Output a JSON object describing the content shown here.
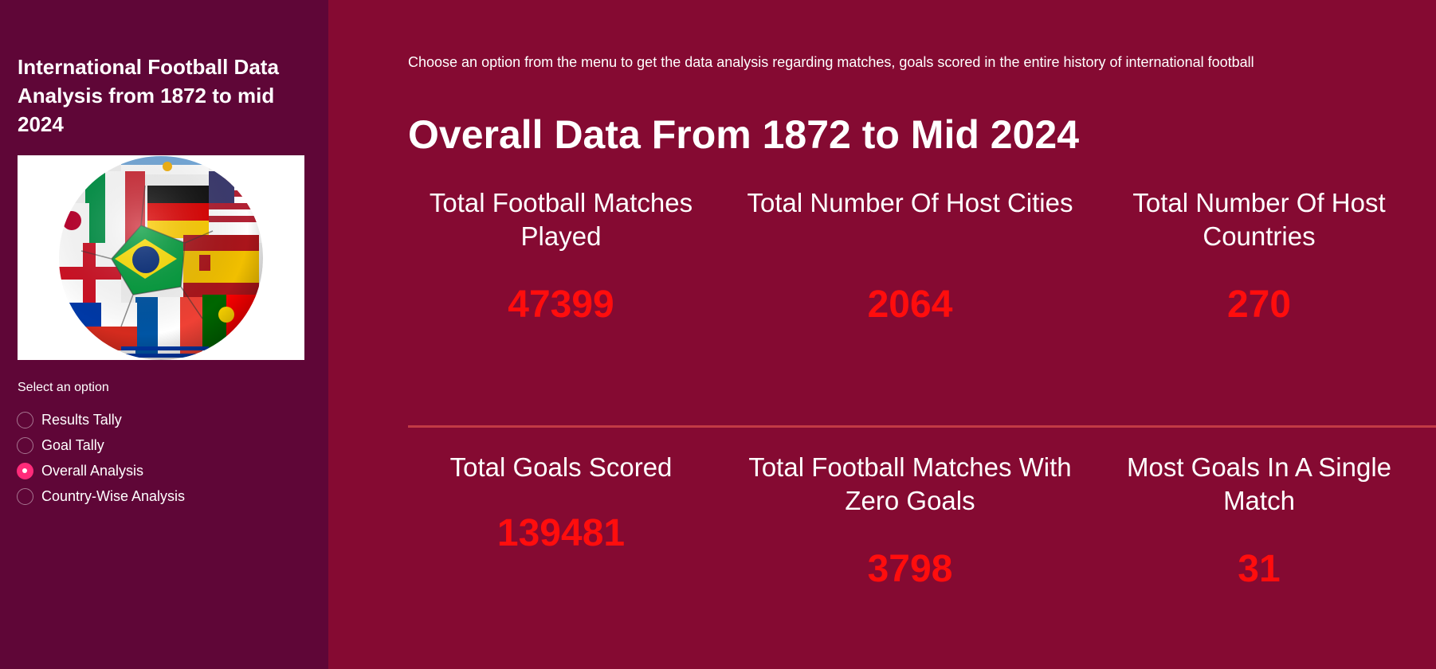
{
  "sidebar": {
    "title": "International Football Data Analysis from 1872 to mid 2024",
    "radio_label": "Select an option",
    "options": [
      {
        "label": "Results Tally",
        "selected": false
      },
      {
        "label": "Goal Tally",
        "selected": false
      },
      {
        "label": "Overall Analysis",
        "selected": true
      },
      {
        "label": "Country-Wise Analysis",
        "selected": false
      }
    ]
  },
  "main": {
    "intro": "Choose an option from the menu to get the data analysis regarding matches, goals scored in the entire history of international football",
    "title": "Overall Data From 1872 to Mid 2024",
    "metrics": [
      {
        "label": "Total Football Matches Played",
        "value": "47399"
      },
      {
        "label": "Total Number Of Host Cities",
        "value": "2064"
      },
      {
        "label": "Total Number Of Host Countries",
        "value": "270"
      },
      {
        "label": "Total Goals Scored",
        "value": "139481"
      },
      {
        "label": "Total Football Matches With Zero Goals",
        "value": "3798"
      },
      {
        "label": "Most Goals In A Single Match",
        "value": "31"
      }
    ]
  },
  "colors": {
    "sidebar_bg": "#5f0637",
    "main_bg": "#850a32",
    "metric_value": "#ff0d0d",
    "accent": "#ff2b7a"
  },
  "icons": {
    "ball_image": "football-with-flags-icon"
  }
}
